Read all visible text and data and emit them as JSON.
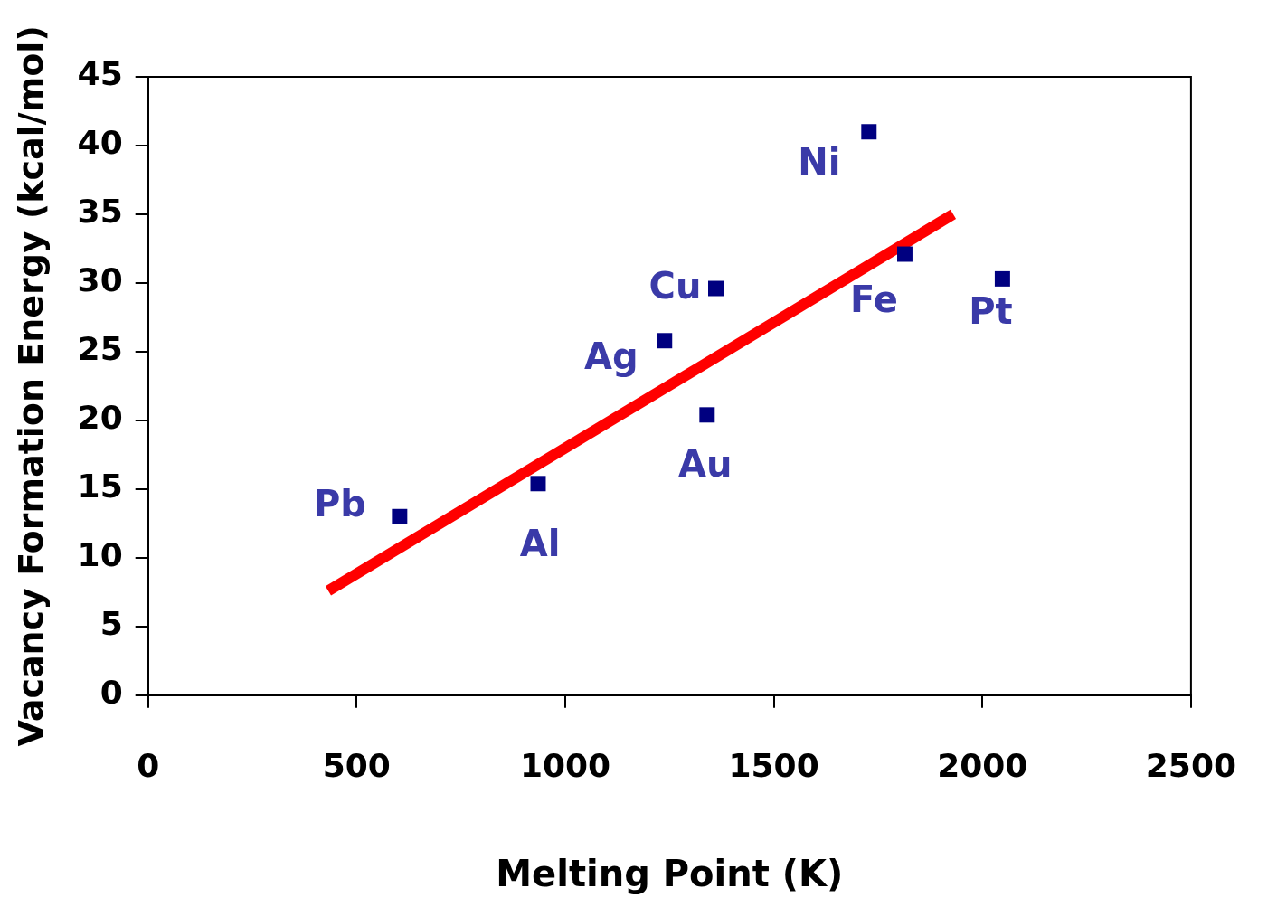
{
  "chart_data": {
    "type": "scatter",
    "xlabel": "Melting Point (K)",
    "ylabel": "Vacancy Formation Energy (kcal/mol)",
    "xlim": [
      0,
      2500
    ],
    "ylim": [
      0,
      45
    ],
    "xticks": [
      0,
      500,
      1000,
      1500,
      2000,
      2500
    ],
    "yticks": [
      0,
      5,
      10,
      15,
      20,
      25,
      30,
      35,
      40,
      45
    ],
    "grid": false,
    "legend": false,
    "marker": "square",
    "series": [
      {
        "color": "#000080",
        "x": [
          603,
          935,
          1238,
          1340,
          1361,
          1728,
          1814,
          2048
        ],
        "values": [
          13.0,
          15.4,
          25.8,
          20.4,
          29.6,
          41.0,
          32.1,
          30.3
        ]
      },
      {
        "type": "line",
        "color": "#ff0000",
        "marker": "none",
        "x": [
          432,
          1930
        ],
        "values": [
          7.6,
          35.0
        ]
      }
    ],
    "annotations": [
      {
        "text": "Pb",
        "x": 603,
        "y": 13.0
      },
      {
        "text": "Al",
        "x": 935,
        "y": 15.4
      },
      {
        "text": "Ag",
        "x": 1238,
        "y": 25.8
      },
      {
        "text": "Au",
        "x": 1340,
        "y": 20.4
      },
      {
        "text": "Cu",
        "x": 1361,
        "y": 29.6
      },
      {
        "text": "Ni",
        "x": 1728,
        "y": 41.0
      },
      {
        "text": "Fe",
        "x": 1814,
        "y": 32.1
      },
      {
        "text": "Pt",
        "x": 2048,
        "y": 30.3
      }
    ]
  }
}
